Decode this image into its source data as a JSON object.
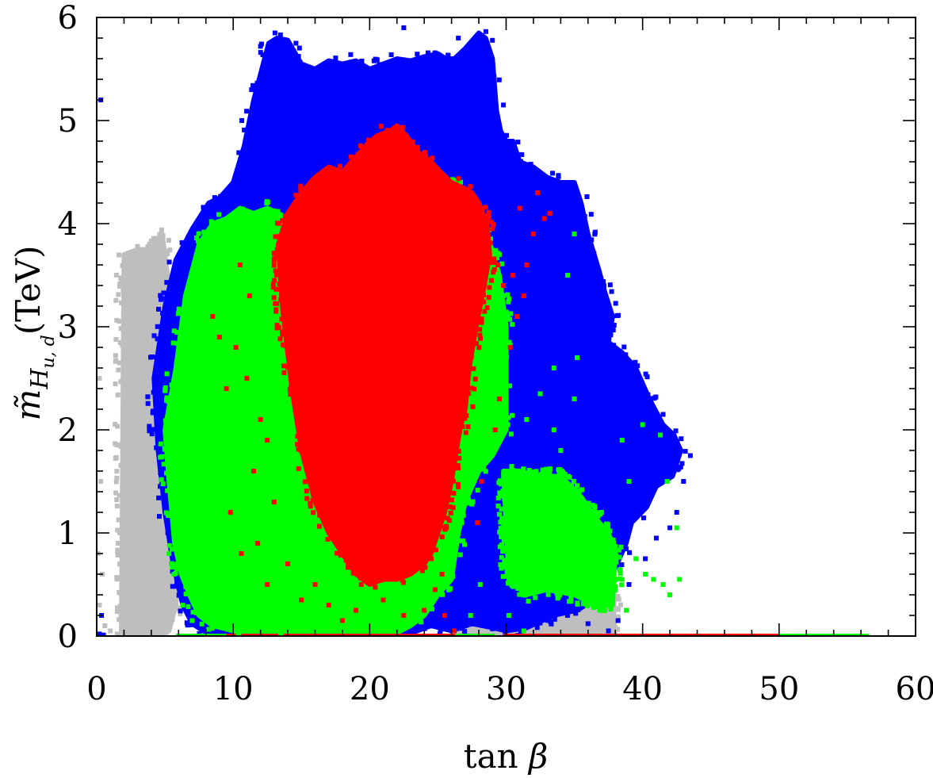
{
  "chart_data": {
    "type": "scatter",
    "title": "",
    "xlabel": "tan β",
    "ylabel": "m̃_{H_u,d}(TeV)",
    "ylabel_parts": {
      "base": "m̃",
      "sub_main": "H",
      "sub_sub": "u, d",
      "unit": "(TeV)"
    },
    "xlim": [
      0,
      60
    ],
    "ylim": [
      0,
      6
    ],
    "x_ticks": [
      "0",
      "10",
      "20",
      "30",
      "40",
      "50",
      "60"
    ],
    "y_ticks": [
      "0",
      "1",
      "2",
      "3",
      "4",
      "5",
      "6"
    ],
    "grid": false,
    "legend": "none",
    "colors": {
      "grey": "#bebebe",
      "blue": "#0000ff",
      "green": "#00ff00",
      "red": "#ff0000"
    },
    "series": [
      {
        "color": "grey",
        "regions": [
          {
            "x": [
              1.8,
              2.0,
              3.0,
              4.0,
              4.8,
              5.3,
              5.8,
              6.0,
              5.8,
              5.3,
              4.8,
              4.5,
              3.0,
              2.0,
              1.8
            ],
            "y": [
              0,
              3.7,
              3.75,
              3.75,
              3.9,
              3.4,
              2.5,
              0.9,
              0.3,
              0.05,
              0,
              0,
              0,
              0,
              0
            ]
          },
          {
            "x": [
              26.0,
              27.5,
              28.8,
              29.6,
              31.0,
              33.5,
              36.0,
              37.8,
              38.0,
              37.0,
              34.0,
              30.0,
              27.0,
              26.0
            ],
            "y": [
              0,
              0.9,
              1.5,
              1.8,
              1.2,
              0.9,
              0.7,
              0.35,
              0,
              0,
              0,
              0,
              0,
              0
            ]
          }
        ],
        "points": [
          [
            0.2,
            2.5
          ],
          [
            0.3,
            1.5
          ],
          [
            0.1,
            0.8
          ],
          [
            0.6,
            0.1
          ],
          [
            0.4,
            0.6
          ],
          [
            0.2,
            0.3
          ],
          [
            1.0,
            0.05
          ],
          [
            1.5,
            0.02
          ],
          [
            26.5,
            1.3
          ],
          [
            27.2,
            1.1
          ],
          [
            28.0,
            0.9
          ],
          [
            28.7,
            0.7
          ],
          [
            27.5,
            0.55
          ],
          [
            29.0,
            0.4
          ],
          [
            28.3,
            0.25
          ],
          [
            26.8,
            0.6
          ],
          [
            27.8,
            0.35
          ],
          [
            29.5,
            0.8
          ],
          [
            26.2,
            0.2
          ],
          [
            28.9,
            1.15
          ]
        ]
      },
      {
        "color": "blue",
        "regions": [
          {
            "x": [
              4.2,
              5.0,
              5.8,
              7.0,
              8.2,
              9.0,
              10.0,
              10.8,
              11.5,
              12.2,
              12.6,
              13.2,
              14.0,
              15.0,
              16.0,
              17.0,
              18.0,
              19.0,
              20.0,
              21.0,
              22.0,
              23.0,
              24.0,
              25.0,
              25.6,
              26.2,
              27.0,
              28.0,
              28.5,
              29.0,
              29.3,
              29.6,
              30.0,
              30.5,
              31.0,
              32.0,
              33.0,
              34.0,
              35.0,
              35.5,
              36.0,
              36.8,
              37.2,
              37.8,
              37.5,
              38.5,
              39.5,
              40.5,
              41.5,
              42.3,
              42.8,
              42.2,
              41.0,
              40.3,
              39.2,
              38.8,
              37.8,
              36.5,
              35.2,
              33.5,
              31.5,
              30.0,
              29.0,
              27.5,
              26.0,
              24.5,
              23.5,
              22.0,
              20.0,
              17.0,
              14.0,
              11.0,
              9.0,
              7.8,
              7.0,
              6.3,
              5.6,
              5.0,
              4.5,
              4.2
            ],
            "y": [
              2.5,
              3.2,
              3.65,
              3.95,
              4.2,
              4.25,
              4.4,
              4.75,
              5.2,
              5.55,
              5.75,
              5.8,
              5.78,
              5.55,
              5.5,
              5.58,
              5.55,
              5.58,
              5.5,
              5.55,
              5.6,
              5.58,
              5.62,
              5.65,
              5.6,
              5.6,
              5.7,
              5.85,
              5.8,
              5.6,
              5.1,
              4.9,
              4.8,
              4.8,
              4.6,
              4.55,
              4.45,
              4.4,
              4.4,
              4.2,
              3.9,
              3.55,
              3.35,
              3.1,
              2.85,
              2.75,
              2.6,
              2.3,
              2.05,
              1.95,
              1.8,
              1.55,
              1.45,
              1.25,
              1.1,
              0.9,
              0.6,
              0.35,
              0.25,
              0.2,
              0.08,
              0.05,
              0.08,
              0.12,
              0.05,
              0.1,
              0.05,
              0.0,
              0.0,
              0.0,
              0.0,
              0.0,
              0.0,
              0.05,
              0.12,
              0.3,
              0.7,
              1.2,
              1.8,
              2.5
            ]
          }
        ],
        "points": [
          [
            0.3,
            5.2
          ],
          [
            0.35,
            0.2
          ],
          [
            0.2,
            0.02
          ],
          [
            0.5,
            0.01
          ],
          [
            41.5,
            2.15
          ],
          [
            43.5,
            1.75
          ],
          [
            42.0,
            1.05
          ],
          [
            39.5,
            1.4
          ],
          [
            41.0,
            0.95
          ],
          [
            40.2,
            0.75
          ],
          [
            39.0,
            0.5
          ],
          [
            38.2,
            0.15
          ],
          [
            37.5,
            0.3
          ],
          [
            35.5,
            0.4
          ],
          [
            36.5,
            0.6
          ],
          [
            42.5,
            1.2
          ],
          [
            43.0,
            1.5
          ],
          [
            40.0,
            1.9
          ],
          [
            38.7,
            2.4
          ],
          [
            39.9,
            2.25
          ],
          [
            37.5,
            0.05
          ],
          [
            36.0,
            0.12
          ],
          [
            34.5,
            0.2
          ],
          [
            33.0,
            0.35
          ],
          [
            32.0,
            0.15
          ],
          [
            31.0,
            0.3
          ],
          [
            30.5,
            0.1
          ],
          [
            22.5,
            5.9
          ],
          [
            14.6,
            5.75
          ],
          [
            12.0,
            5.72
          ],
          [
            12.8,
            5.75
          ],
          [
            26.5,
            5.8
          ],
          [
            28.5,
            5.7
          ],
          [
            35.0,
            3.6
          ],
          [
            36.3,
            3.3
          ],
          [
            37.0,
            3.0
          ],
          [
            37.2,
            2.9
          ]
        ]
      },
      {
        "color": "green",
        "regions": [
          {
            "x": [
              5.0,
              5.8,
              6.5,
              7.5,
              8.5,
              9.5,
              10.5,
              11.5,
              12.5,
              13.3,
              14.0,
              15.0,
              16.5,
              18.0,
              19.5,
              20.5,
              22.0,
              23.5,
              24.5,
              25.5,
              26.5,
              27.5,
              28.5,
              29.5,
              30.0,
              30.0,
              29.0,
              28.0,
              27.0,
              26.5,
              26.0,
              25.0,
              24.0,
              23.0,
              22.0,
              21.0,
              20.0,
              18.0,
              16.0,
              14.0,
              12.0,
              10.0,
              8.5,
              7.5,
              6.8,
              6.2,
              5.7,
              5.3,
              5.0
            ],
            "y": [
              2.0,
              2.6,
              3.3,
              3.8,
              4.0,
              4.05,
              4.15,
              4.1,
              4.15,
              4.1,
              4.05,
              4.2,
              4.3,
              4.35,
              4.4,
              4.5,
              4.55,
              4.5,
              4.5,
              4.4,
              4.35,
              4.2,
              3.95,
              3.5,
              3.0,
              2.0,
              1.75,
              1.6,
              1.3,
              1.0,
              0.55,
              0.4,
              0.2,
              0.1,
              0.03,
              0.02,
              0.03,
              0.0,
              0.0,
              0.0,
              0.0,
              0.05,
              0.1,
              0.2,
              0.4,
              0.6,
              0.9,
              1.5,
              2.0
            ]
          },
          {
            "x": [
              29.8,
              31.0,
              32.5,
              34.0,
              35.5,
              36.5,
              37.5,
              38.0,
              37.8,
              36.5,
              35.0,
              33.0,
              31.5,
              30.2,
              29.8
            ],
            "y": [
              1.6,
              1.6,
              1.55,
              1.55,
              1.35,
              1.15,
              1.0,
              0.8,
              0.3,
              0.3,
              0.4,
              0.45,
              0.4,
              0.55,
              1.6
            ]
          }
        ],
        "points": [
          [
            33.5,
            2.0
          ],
          [
            34.0,
            1.8
          ],
          [
            37.5,
            0.85
          ],
          [
            38.5,
            0.55
          ],
          [
            39.5,
            0.75
          ],
          [
            40.2,
            0.6
          ],
          [
            40.8,
            0.55
          ],
          [
            41.5,
            0.5
          ],
          [
            42.5,
            1.05
          ],
          [
            41.8,
            1.5
          ],
          [
            42.0,
            0.4
          ],
          [
            42.7,
            0.55
          ],
          [
            38.8,
            0.25
          ],
          [
            35.0,
            2.3
          ],
          [
            35.2,
            2.7
          ],
          [
            34.5,
            3.5
          ],
          [
            35.0,
            3.9
          ],
          [
            40.0,
            2.05
          ],
          [
            41.3,
            1.95
          ],
          [
            39.0,
            1.5
          ],
          [
            38.5,
            1.9
          ],
          [
            37.0,
            1.2
          ],
          [
            36.0,
            0.9
          ],
          [
            35.5,
            0.7
          ],
          [
            33.0,
            0.95
          ],
          [
            32.0,
            0.5
          ],
          [
            30.5,
            0.8
          ],
          [
            30.9,
            1.35
          ],
          [
            31.5,
            2.1
          ],
          [
            32.5,
            2.35
          ],
          [
            33.5,
            2.6
          ],
          [
            30.0,
            2.9
          ],
          [
            29.8,
            3.3
          ],
          [
            29.5,
            3.7
          ],
          [
            5.3,
            1.9
          ],
          [
            6.3,
            0.3
          ],
          [
            7.0,
            0.15
          ],
          [
            30.2,
            0.2
          ],
          [
            31.3,
            0.05
          ],
          [
            26.2,
            0.05
          ],
          [
            27.4,
            0.2
          ],
          [
            28.1,
            0.5
          ]
        ]
      },
      {
        "color": "red",
        "regions": [
          {
            "x": [
              13.3,
              14.0,
              15.0,
              16.0,
              17.0,
              18.0,
              19.0,
              19.7,
              20.5,
              21.5,
              22.0,
              22.7,
              23.5,
              24.5,
              25.2,
              26.0,
              26.8,
              27.5,
              28.0,
              28.6,
              28.8,
              28.4,
              27.8,
              27.3,
              27.0,
              26.6,
              26.0,
              25.5,
              25.0,
              24.5,
              24.0,
              23.0,
              22.0,
              21.0,
              20.0,
              19.0,
              18.0,
              17.0,
              16.0,
              15.0,
              14.3,
              13.6,
              13.3
            ],
            "y": [
              3.8,
              4.1,
              4.3,
              4.45,
              4.55,
              4.5,
              4.65,
              4.75,
              4.85,
              4.9,
              4.95,
              4.85,
              4.7,
              4.6,
              4.5,
              4.4,
              4.35,
              4.3,
              4.2,
              4.0,
              3.7,
              3.4,
              3.0,
              2.6,
              2.2,
              2.0,
              1.5,
              1.2,
              1.0,
              0.8,
              0.7,
              0.6,
              0.55,
              0.55,
              0.5,
              0.6,
              0.8,
              1.0,
              1.3,
              1.8,
              2.4,
              3.2,
              3.8
            ]
          }
        ],
        "points": [
          [
            8.5,
            3.1
          ],
          [
            9.0,
            2.9
          ],
          [
            9.5,
            2.4
          ],
          [
            10.2,
            2.8
          ],
          [
            11.0,
            2.5
          ],
          [
            11.5,
            1.6
          ],
          [
            12.0,
            2.1
          ],
          [
            12.5,
            1.9
          ],
          [
            10.5,
            3.6
          ],
          [
            11.2,
            3.3
          ],
          [
            9.8,
            1.2
          ],
          [
            10.6,
            0.8
          ],
          [
            11.8,
            0.9
          ],
          [
            13.0,
            1.3
          ],
          [
            12.5,
            0.5
          ],
          [
            14.0,
            0.7
          ],
          [
            15.0,
            0.35
          ],
          [
            16.0,
            0.5
          ],
          [
            17.0,
            0.3
          ],
          [
            18.0,
            0.15
          ],
          [
            19.0,
            0.25
          ],
          [
            21.0,
            0.35
          ],
          [
            22.5,
            0.2
          ],
          [
            24.0,
            0.25
          ],
          [
            25.5,
            0.2
          ],
          [
            26.2,
            0.05
          ],
          [
            29.0,
            3.95
          ],
          [
            30.5,
            3.5
          ],
          [
            31.5,
            3.6
          ],
          [
            32.0,
            3.9
          ],
          [
            32.8,
            4.05
          ],
          [
            30.3,
            2.8
          ],
          [
            30.8,
            3.1
          ],
          [
            31.3,
            3.3
          ],
          [
            29.8,
            3.4
          ],
          [
            29.5,
            2.3
          ],
          [
            29.2,
            2.0
          ],
          [
            33.2,
            4.1
          ],
          [
            32.3,
            4.3
          ],
          [
            31.0,
            4.15
          ],
          [
            28.6,
            4.05
          ],
          [
            29.4,
            3.6
          ],
          [
            27.9,
            1.1
          ],
          [
            28.2,
            1.5
          ],
          [
            24.8,
            0.45
          ],
          [
            25.3,
            0.6
          ]
        ]
      }
    ],
    "axis_strips": [
      {
        "color": "green",
        "x": [
          5.8,
          9.5
        ],
        "y": 0
      },
      {
        "color": "red",
        "x": [
          9.5,
          10.2
        ],
        "y": 0
      },
      {
        "color": "green",
        "x": [
          10.2,
          10.6
        ],
        "y": 0
      },
      {
        "color": "red",
        "x": [
          10.6,
          13.3
        ],
        "y": 0
      },
      {
        "color": "green",
        "x": [
          13.3,
          13.7
        ],
        "y": 0
      },
      {
        "color": "red",
        "x": [
          13.7,
          26.3
        ],
        "y": 0
      },
      {
        "color": "green",
        "x": [
          26.3,
          29.2
        ],
        "y": 0
      },
      {
        "color": "red",
        "x": [
          29.8,
          50.0
        ],
        "y": 0
      },
      {
        "color": "green",
        "x": [
          50.0,
          56.6
        ],
        "y": 0
      }
    ]
  }
}
